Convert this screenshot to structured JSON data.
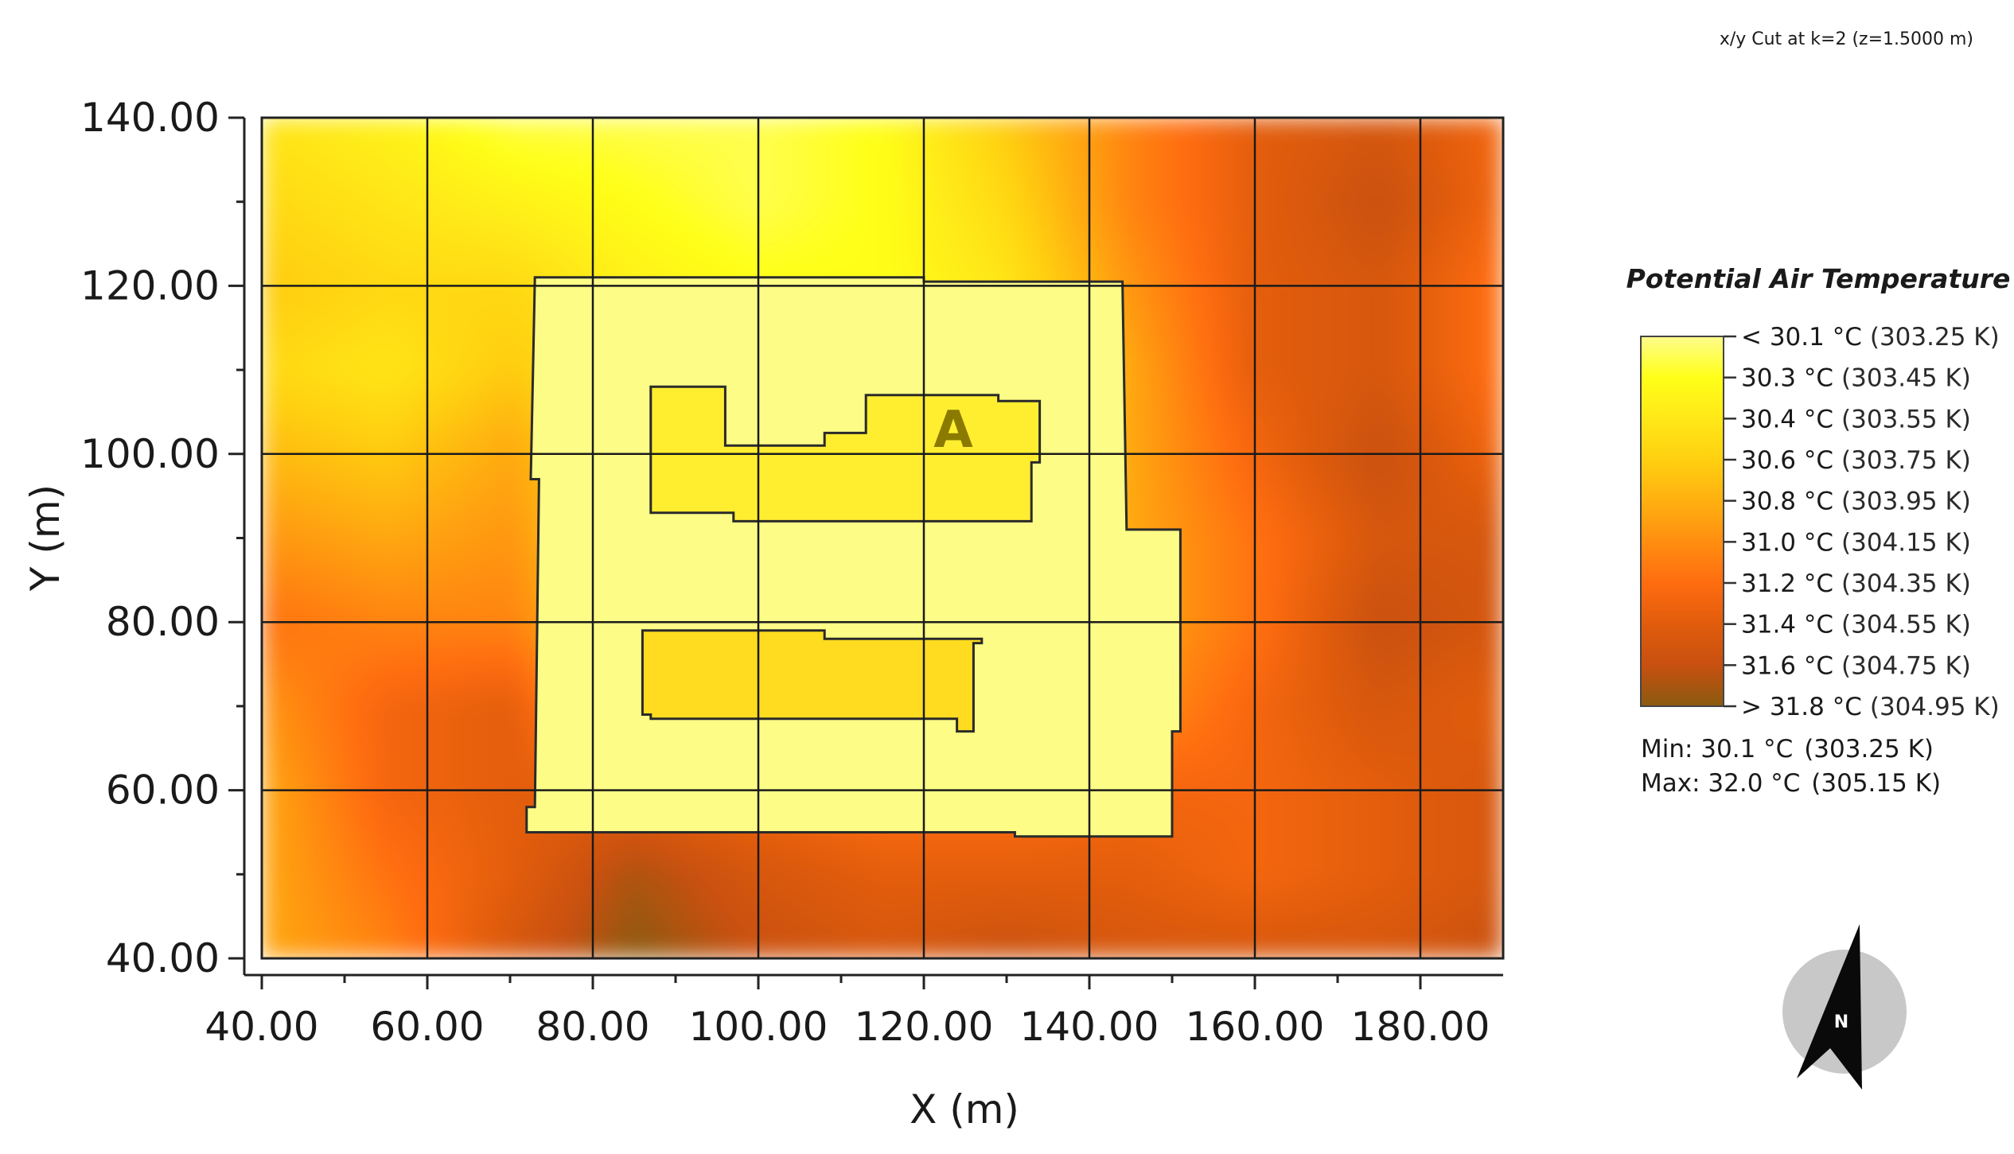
{
  "chart_data": {
    "type": "heatmap",
    "title": "x/y Cut at k=2 (z=1.5000 m)",
    "xlabel": "X (m)",
    "ylabel": "Y (m)",
    "xlim": [
      40,
      190
    ],
    "ylim": [
      40,
      140
    ],
    "x_ticks": [
      "40.00",
      "60.00",
      "80.00",
      "100.00",
      "120.00",
      "140.00",
      "160.00",
      "180.00"
    ],
    "y_ticks": [
      "40.00",
      "60.00",
      "80.00",
      "100.00",
      "120.00",
      "140.00"
    ],
    "grid": true,
    "legend": {
      "title": "Potential Air Temperature",
      "position": "right",
      "entries": [
        {
          "label": "< 30.1 °C",
          "kelvin": "(303.25 K)"
        },
        {
          "label": "30.3  °C",
          "kelvin": "(303.45 K)"
        },
        {
          "label": "30.4  °C",
          "kelvin": "(303.55 K)"
        },
        {
          "label": "30.6  °C",
          "kelvin": "(303.75 K)"
        },
        {
          "label": "30.8  °C",
          "kelvin": "(303.95 K)"
        },
        {
          "label": "31.0  °C",
          "kelvin": "(304.15 K)"
        },
        {
          "label": "31.2  °C",
          "kelvin": "(304.35 K)"
        },
        {
          "label": "31.4  °C",
          "kelvin": "(304.55 K)"
        },
        {
          "label": "31.6  °C",
          "kelvin": "(304.75 K)"
        },
        {
          "label": "> 31.8 °C",
          "kelvin": "(304.95 K)"
        }
      ],
      "colors": [
        "#fefc8c",
        "#ffff18",
        "#ffe818",
        "#ffd010",
        "#ffb010",
        "#ff8e10",
        "#ff6c10",
        "#e05c0c",
        "#c85010",
        "#8a5a10"
      ]
    },
    "min_label": "Min: 30.1 °C",
    "min_kelvin": "(303.25 K)",
    "max_label": "Max: 32.0 °C",
    "max_kelvin": "(305.15 K)",
    "annotation": "A",
    "north_label": "N",
    "temperature_field": {
      "x": [
        40,
        55,
        70,
        85,
        100,
        115,
        130,
        145,
        160,
        175,
        190
      ],
      "y": [
        140,
        130,
        120,
        110,
        100,
        90,
        80,
        70,
        60,
        50,
        40
      ],
      "values_C": [
        [
          30.5,
          30.4,
          30.2,
          30.2,
          30.2,
          30.3,
          30.7,
          31.1,
          31.4,
          31.5,
          31.3
        ],
        [
          30.6,
          30.5,
          30.4,
          30.3,
          30.2,
          30.3,
          30.6,
          31.1,
          31.4,
          31.6,
          31.3
        ],
        [
          30.7,
          30.6,
          30.6,
          30.4,
          30.3,
          30.3,
          30.5,
          31.0,
          31.4,
          31.5,
          31.2
        ],
        [
          30.6,
          30.5,
          30.7,
          30.4,
          30.3,
          30.3,
          30.5,
          30.9,
          31.4,
          31.5,
          31.2
        ],
        [
          30.8,
          30.7,
          30.9,
          30.5,
          30.4,
          30.4,
          30.5,
          30.9,
          31.3,
          31.6,
          31.3
        ],
        [
          31.0,
          30.9,
          31.0,
          30.5,
          30.4,
          30.4,
          30.5,
          30.9,
          31.2,
          31.5,
          31.5
        ],
        [
          31.2,
          31.1,
          31.1,
          30.6,
          30.4,
          30.4,
          30.5,
          30.9,
          31.2,
          31.6,
          31.5
        ],
        [
          31.0,
          31.3,
          31.4,
          30.7,
          30.5,
          30.5,
          30.6,
          31.0,
          31.3,
          31.5,
          31.4
        ],
        [
          30.9,
          31.3,
          31.4,
          31.4,
          31.3,
          31.2,
          31.2,
          31.3,
          31.3,
          31.4,
          31.5
        ],
        [
          30.9,
          31.2,
          31.4,
          31.7,
          31.5,
          31.4,
          31.4,
          31.4,
          31.3,
          31.4,
          31.5
        ],
        [
          30.9,
          31.1,
          31.5,
          31.8,
          31.6,
          31.5,
          31.6,
          31.5,
          31.5,
          31.5,
          31.6
        ]
      ],
      "color_scale_C": [
        30.1,
        31.8
      ]
    },
    "buildings": [
      {
        "name": "outer-block",
        "fill": "#fcfc86",
        "points": [
          [
            73,
            121
          ],
          [
            120,
            121
          ],
          [
            120,
            120.5
          ],
          [
            144,
            120.5
          ],
          [
            144.5,
            91
          ],
          [
            151,
            91
          ],
          [
            151,
            67
          ],
          [
            150,
            67
          ],
          [
            150,
            54.5
          ],
          [
            131,
            54.5
          ],
          [
            131,
            55
          ],
          [
            72,
            55
          ],
          [
            72,
            58
          ],
          [
            73,
            58
          ],
          [
            73.5,
            97
          ],
          [
            72.5,
            97
          ]
        ]
      },
      {
        "name": "building-a",
        "fill": "#ffee30",
        "points": [
          [
            87,
            108
          ],
          [
            96,
            108
          ],
          [
            96,
            101
          ],
          [
            108,
            101
          ],
          [
            108,
            102.5
          ],
          [
            113,
            102.5
          ],
          [
            113,
            107
          ],
          [
            129,
            107
          ],
          [
            129,
            106.3
          ],
          [
            134,
            106.3
          ],
          [
            134,
            99
          ],
          [
            133,
            99
          ],
          [
            133,
            92
          ],
          [
            97,
            92
          ],
          [
            97,
            93
          ],
          [
            87,
            93
          ]
        ]
      },
      {
        "name": "building-b",
        "fill": "#ffdc20",
        "points": [
          [
            86,
            79
          ],
          [
            108,
            79
          ],
          [
            108,
            78
          ],
          [
            127,
            78
          ],
          [
            127,
            77.5
          ],
          [
            126,
            77.5
          ],
          [
            126,
            67
          ],
          [
            124,
            67
          ],
          [
            124,
            68.5
          ],
          [
            87,
            68.5
          ],
          [
            87,
            69
          ],
          [
            86,
            69
          ]
        ]
      }
    ]
  }
}
